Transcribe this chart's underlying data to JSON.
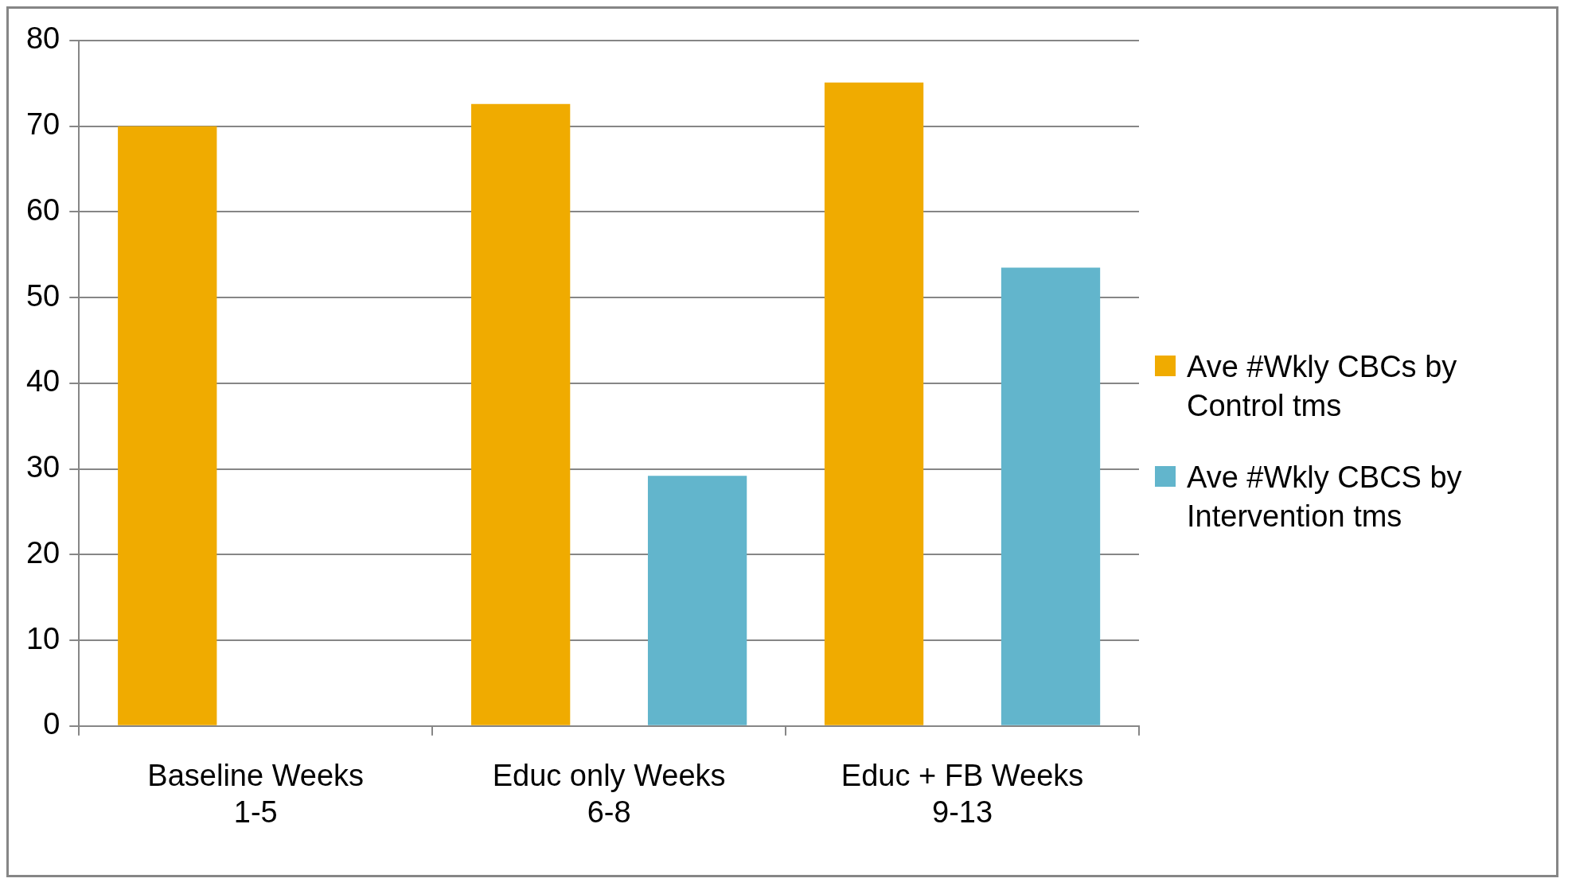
{
  "chart_data": {
    "type": "bar",
    "categories": [
      "Baseline Weeks 1-5",
      "Educ only Weeks 6-8",
      "Educ + FB Weeks 9-13"
    ],
    "series": [
      {
        "name": "Ave #Wkly CBCs  by Control tms",
        "color": "#f0ab00",
        "values": [
          70,
          72.6,
          75.1
        ]
      },
      {
        "name": "Ave #Wkly CBCS  by Intervention tms",
        "color": "#62b5cc",
        "values": [
          null,
          29.2,
          53.5
        ]
      }
    ],
    "ylim": [
      0,
      80
    ],
    "yticks": [
      0,
      10,
      20,
      30,
      40,
      50,
      60,
      70,
      80
    ],
    "grid": "y",
    "legend": "right"
  }
}
